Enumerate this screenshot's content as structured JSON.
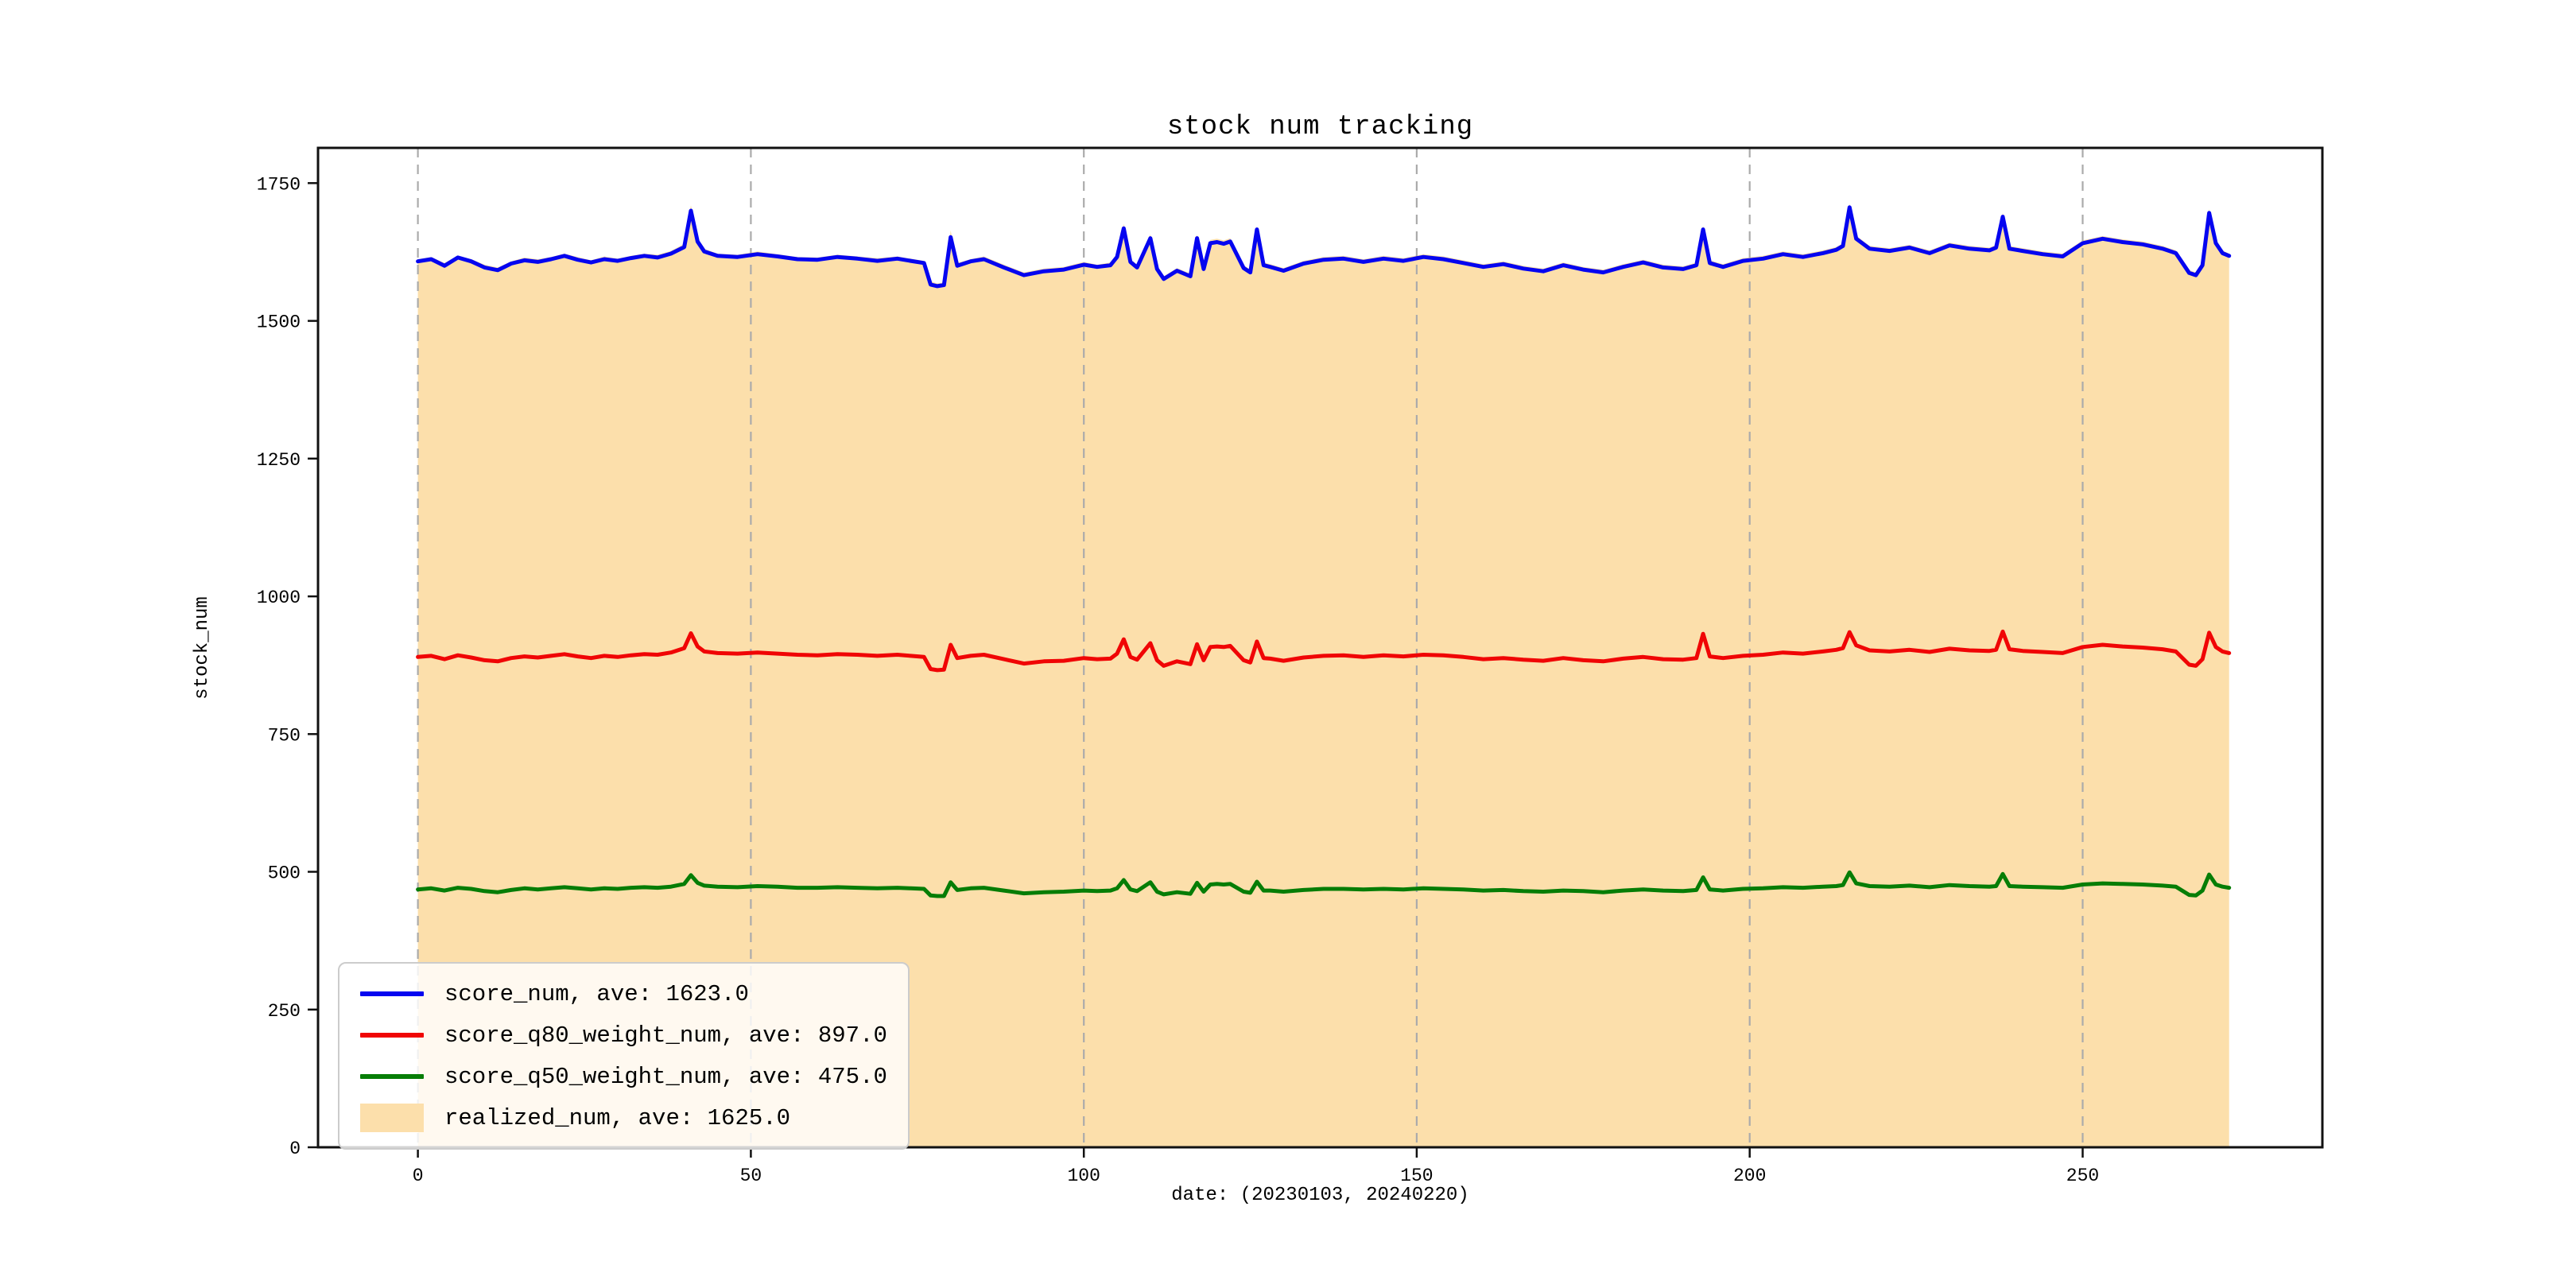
{
  "colors": {
    "blue_line": "#0505f0",
    "red_line": "#f00505",
    "green_line": "#067d06",
    "area_fill": "#fcdfab",
    "grid": "#ababab",
    "spine": "#111111",
    "legend_border": "#cccccc"
  },
  "chart_data": {
    "type": "line",
    "title": "stock num tracking",
    "xlabel": "date: (20230103, 20240220)",
    "ylabel": "stock_num",
    "xlim": [
      -15,
      286
    ],
    "ylim": [
      0,
      1814
    ],
    "xticks": [
      0,
      50,
      100,
      150,
      200,
      250
    ],
    "yticks": [
      0,
      250,
      500,
      750,
      1000,
      1250,
      1500,
      1750
    ],
    "grid": "vertical-dashed",
    "legend_position": "lower left",
    "x": [
      0,
      2,
      4,
      6,
      8,
      10,
      12,
      14,
      16,
      18,
      20,
      22,
      24,
      26,
      28,
      30,
      32,
      34,
      36,
      38,
      40,
      41,
      42,
      43,
      45,
      48,
      51,
      54,
      57,
      60,
      63,
      66,
      69,
      72,
      74,
      76,
      77,
      78,
      79,
      80,
      81,
      83,
      85,
      88,
      91,
      94,
      97,
      100,
      102,
      104,
      105,
      106,
      107,
      108,
      110,
      111,
      112,
      114,
      116,
      117,
      118,
      119,
      120,
      121,
      122,
      124,
      125,
      126,
      127,
      128,
      130,
      133,
      136,
      139,
      142,
      145,
      148,
      151,
      154,
      157,
      160,
      163,
      166,
      169,
      172,
      175,
      178,
      181,
      184,
      187,
      190,
      192,
      193,
      194,
      196,
      199,
      202,
      205,
      208,
      211,
      213,
      214,
      215,
      216,
      218,
      221,
      224,
      227,
      230,
      233,
      236,
      237,
      238,
      239,
      241,
      244,
      247,
      250,
      253,
      256,
      259,
      262,
      264,
      266,
      267,
      268,
      269,
      270,
      271,
      272
    ],
    "series": [
      {
        "name": "score_num, ave: 1623.0",
        "type": "line",
        "color": "#0505f0",
        "values": [
          1608,
          1612,
          1600,
          1615,
          1608,
          1597,
          1592,
          1604,
          1610,
          1607,
          1612,
          1618,
          1611,
          1606,
          1612,
          1609,
          1614,
          1618,
          1615,
          1622,
          1634,
          1700,
          1644,
          1626,
          1618,
          1616,
          1621,
          1617,
          1612,
          1611,
          1616,
          1613,
          1609,
          1613,
          1609,
          1605,
          1566,
          1563,
          1565,
          1652,
          1600,
          1608,
          1612,
          1597,
          1583,
          1590,
          1593,
          1602,
          1598,
          1601,
          1616,
          1668,
          1607,
          1597,
          1650,
          1594,
          1576,
          1591,
          1581,
          1650,
          1594,
          1641,
          1643,
          1640,
          1644,
          1596,
          1588,
          1666,
          1601,
          1598,
          1591,
          1604,
          1611,
          1613,
          1607,
          1613,
          1609,
          1616,
          1612,
          1605,
          1598,
          1603,
          1595,
          1590,
          1601,
          1593,
          1588,
          1598,
          1606,
          1597,
          1594,
          1601,
          1666,
          1605,
          1598,
          1609,
          1613,
          1621,
          1616,
          1623,
          1629,
          1636,
          1706,
          1649,
          1631,
          1627,
          1633,
          1623,
          1637,
          1631,
          1628,
          1633,
          1689,
          1631,
          1627,
          1621,
          1617,
          1641,
          1649,
          1643,
          1639,
          1631,
          1623,
          1587,
          1583,
          1601,
          1696,
          1641,
          1623,
          1618
        ]
      },
      {
        "name": "score_q80_weight_num, ave: 897.0",
        "type": "line",
        "color": "#f00505",
        "values": [
          890,
          892,
          886,
          893,
          889,
          884,
          882,
          888,
          891,
          889,
          892,
          895,
          891,
          888,
          892,
          890,
          893,
          895,
          894,
          898,
          906,
          933,
          909,
          900,
          897,
          896,
          898,
          896,
          894,
          893,
          895,
          894,
          892,
          894,
          892,
          890,
          868,
          866,
          867,
          912,
          888,
          892,
          894,
          886,
          878,
          882,
          883,
          888,
          886,
          887,
          896,
          922,
          890,
          885,
          915,
          884,
          874,
          882,
          877,
          913,
          884,
          908,
          909,
          908,
          910,
          884,
          880,
          918,
          888,
          887,
          883,
          889,
          892,
          893,
          890,
          893,
          891,
          894,
          893,
          890,
          886,
          888,
          885,
          883,
          888,
          884,
          882,
          887,
          890,
          886,
          885,
          888,
          932,
          891,
          888,
          892,
          894,
          898,
          896,
          900,
          903,
          906,
          935,
          911,
          902,
          900,
          903,
          899,
          905,
          902,
          901,
          903,
          936,
          904,
          901,
          899,
          897,
          908,
          912,
          909,
          907,
          904,
          900,
          876,
          874,
          886,
          934,
          908,
          900,
          897
        ]
      },
      {
        "name": "score_q50_weight_num, ave: 475.0",
        "type": "line",
        "color": "#067d06",
        "values": [
          468,
          470,
          466,
          471,
          469,
          465,
          463,
          467,
          470,
          468,
          470,
          472,
          470,
          468,
          470,
          469,
          471,
          472,
          471,
          473,
          478,
          494,
          480,
          475,
          473,
          472,
          474,
          473,
          471,
          471,
          472,
          471,
          470,
          471,
          470,
          469,
          457,
          456,
          456,
          481,
          467,
          470,
          471,
          466,
          461,
          463,
          464,
          466,
          465,
          466,
          470,
          485,
          468,
          465,
          481,
          464,
          459,
          463,
          460,
          480,
          464,
          477,
          478,
          477,
          478,
          464,
          462,
          482,
          466,
          466,
          464,
          467,
          469,
          469,
          468,
          469,
          468,
          470,
          469,
          468,
          466,
          467,
          465,
          464,
          466,
          465,
          463,
          466,
          468,
          466,
          465,
          467,
          490,
          468,
          466,
          469,
          470,
          472,
          471,
          473,
          474,
          476,
          499,
          479,
          474,
          473,
          475,
          472,
          476,
          474,
          473,
          474,
          496,
          474,
          473,
          472,
          471,
          477,
          479,
          478,
          477,
          475,
          473,
          458,
          457,
          466,
          495,
          477,
          473,
          471
        ]
      },
      {
        "name": "realized_num, ave: 1625.0",
        "type": "area",
        "color": "#fcdfab",
        "values": [
          1612,
          1616,
          1605,
          1618,
          1612,
          1602,
          1597,
          1608,
          1615,
          1612,
          1616,
          1622,
          1616,
          1610,
          1617,
          1613,
          1618,
          1622,
          1620,
          1627,
          1640,
          1710,
          1650,
          1631,
          1622,
          1620,
          1626,
          1621,
          1616,
          1615,
          1620,
          1617,
          1614,
          1617,
          1613,
          1609,
          1572,
          1568,
          1570,
          1664,
          1605,
          1612,
          1617,
          1602,
          1588,
          1595,
          1598,
          1607,
          1602,
          1606,
          1622,
          1676,
          1612,
          1602,
          1657,
          1599,
          1581,
          1596,
          1586,
          1657,
          1600,
          1647,
          1649,
          1646,
          1650,
          1601,
          1593,
          1672,
          1606,
          1603,
          1596,
          1609,
          1616,
          1618,
          1612,
          1618,
          1614,
          1621,
          1617,
          1610,
          1603,
          1608,
          1600,
          1595,
          1606,
          1598,
          1593,
          1603,
          1611,
          1602,
          1599,
          1606,
          1673,
          1610,
          1603,
          1614,
          1618,
          1626,
          1621,
          1628,
          1634,
          1641,
          1713,
          1655,
          1636,
          1632,
          1638,
          1628,
          1642,
          1636,
          1633,
          1638,
          1696,
          1636,
          1632,
          1626,
          1622,
          1646,
          1654,
          1648,
          1644,
          1636,
          1628,
          1592,
          1588,
          1606,
          1703,
          1646,
          1628,
          1622
        ]
      }
    ]
  }
}
